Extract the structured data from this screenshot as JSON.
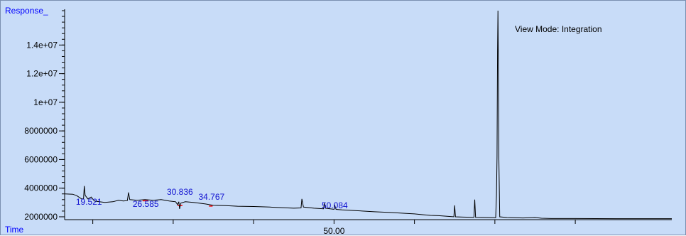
{
  "chart_data": {
    "type": "line",
    "title": "",
    "ylabel": "Response_",
    "xlabel": "Time",
    "annotation": "View Mode: Integration",
    "x_range": [
      16.5,
      92
    ],
    "y_range": [
      1800000,
      16500000
    ],
    "y_ticks": [
      {
        "value": 2000000,
        "label": "2000000"
      },
      {
        "value": 4000000,
        "label": "4000000"
      },
      {
        "value": 6000000,
        "label": "6000000"
      },
      {
        "value": 8000000,
        "label": "8000000"
      },
      {
        "value": 10000000,
        "label": "1e+07"
      },
      {
        "value": 12000000,
        "label": "1.2e+07"
      },
      {
        "value": 14000000,
        "label": "1.4e+07"
      }
    ],
    "x_ticks": [
      {
        "value": 20,
        "label": ""
      },
      {
        "value": 30,
        "label": ""
      },
      {
        "value": 40,
        "label": ""
      },
      {
        "value": 50,
        "label": "50.00"
      },
      {
        "value": 60,
        "label": ""
      },
      {
        "value": 70,
        "label": ""
      },
      {
        "value": 80,
        "label": ""
      }
    ],
    "peak_labels": [
      {
        "x": 19.521,
        "y": 2750000,
        "text": "19.521"
      },
      {
        "x": 26.585,
        "y": 2600000,
        "text": "26.585"
      },
      {
        "x": 30.836,
        "y": 3450000,
        "text": "30.836"
      },
      {
        "x": 34.767,
        "y": 3100000,
        "text": "34.767"
      },
      {
        "x": 50.084,
        "y": 2500000,
        "text": "50.084"
      }
    ],
    "trace": [
      [
        16.5,
        3600000
      ],
      [
        17.5,
        3580000
      ],
      [
        18.0,
        3480000
      ],
      [
        18.6,
        3250000
      ],
      [
        18.85,
        3250000
      ],
      [
        18.95,
        4150000
      ],
      [
        19.05,
        3500000
      ],
      [
        19.4,
        3250000
      ],
      [
        19.8,
        3380000
      ],
      [
        20.2,
        3100000
      ],
      [
        20.8,
        3050000
      ],
      [
        21.5,
        3000000
      ],
      [
        22.5,
        3050000
      ],
      [
        23.2,
        3150000
      ],
      [
        23.8,
        3100000
      ],
      [
        24.3,
        3130000
      ],
      [
        24.45,
        3700000
      ],
      [
        24.6,
        3200000
      ],
      [
        25.5,
        3150000
      ],
      [
        26.5,
        3200000
      ],
      [
        27.5,
        3150000
      ],
      [
        28.5,
        3200000
      ],
      [
        29.5,
        3100000
      ],
      [
        30.3,
        3050000
      ],
      [
        30.55,
        2850000
      ],
      [
        30.7,
        3050000
      ],
      [
        30.8,
        2550000
      ],
      [
        30.95,
        2950000
      ],
      [
        31.5,
        3050000
      ],
      [
        32.5,
        3000000
      ],
      [
        34.0,
        2900000
      ],
      [
        35.0,
        2800000
      ],
      [
        36.5,
        2780000
      ],
      [
        38.0,
        2740000
      ],
      [
        40.0,
        2720000
      ],
      [
        42.0,
        2680000
      ],
      [
        43.5,
        2640000
      ],
      [
        45.0,
        2600000
      ],
      [
        45.9,
        2620000
      ],
      [
        46.0,
        3250000
      ],
      [
        46.2,
        2680000
      ],
      [
        47.5,
        2600000
      ],
      [
        48.7,
        2560000
      ],
      [
        48.8,
        2950000
      ],
      [
        48.95,
        2600000
      ],
      [
        50.0,
        2520000
      ],
      [
        50.1,
        2780000
      ],
      [
        50.25,
        2520000
      ],
      [
        51.0,
        2480000
      ],
      [
        53.0,
        2420000
      ],
      [
        55.0,
        2350000
      ],
      [
        57.0,
        2300000
      ],
      [
        59.0,
        2230000
      ],
      [
        60.0,
        2200000
      ],
      [
        61.0,
        2150000
      ],
      [
        62.0,
        2100000
      ],
      [
        63.0,
        2080000
      ],
      [
        64.5,
        2020000
      ],
      [
        64.9,
        2000000
      ],
      [
        65.0,
        2800000
      ],
      [
        65.1,
        2000000
      ],
      [
        66.0,
        1980000
      ],
      [
        67.4,
        1960000
      ],
      [
        67.5,
        3200000
      ],
      [
        67.6,
        1960000
      ],
      [
        69.0,
        1950000
      ],
      [
        70.1,
        1940000
      ],
      [
        70.2,
        3500000
      ],
      [
        70.27,
        6200000
      ],
      [
        70.33,
        13500000
      ],
      [
        70.38,
        16400000
      ],
      [
        70.43,
        13000000
      ],
      [
        70.5,
        6000000
      ],
      [
        70.6,
        2000000
      ],
      [
        71.5,
        1950000
      ],
      [
        73.5,
        1920000
      ],
      [
        75.0,
        1950000
      ],
      [
        75.8,
        1900000
      ],
      [
        77.0,
        1880000
      ],
      [
        80.0,
        1880000
      ],
      [
        85.0,
        1870000
      ],
      [
        92.0,
        1870000
      ]
    ],
    "integration_marks": [
      [
        26.2,
        26.9
      ],
      [
        30.55,
        31.15
      ],
      [
        34.45,
        34.9
      ]
    ],
    "colors": {
      "background": "#c8dcf8",
      "trace": "#000000",
      "axis_label": "#0000ff",
      "peak_label": "#1010d0",
      "integration": "#ff0000"
    }
  }
}
